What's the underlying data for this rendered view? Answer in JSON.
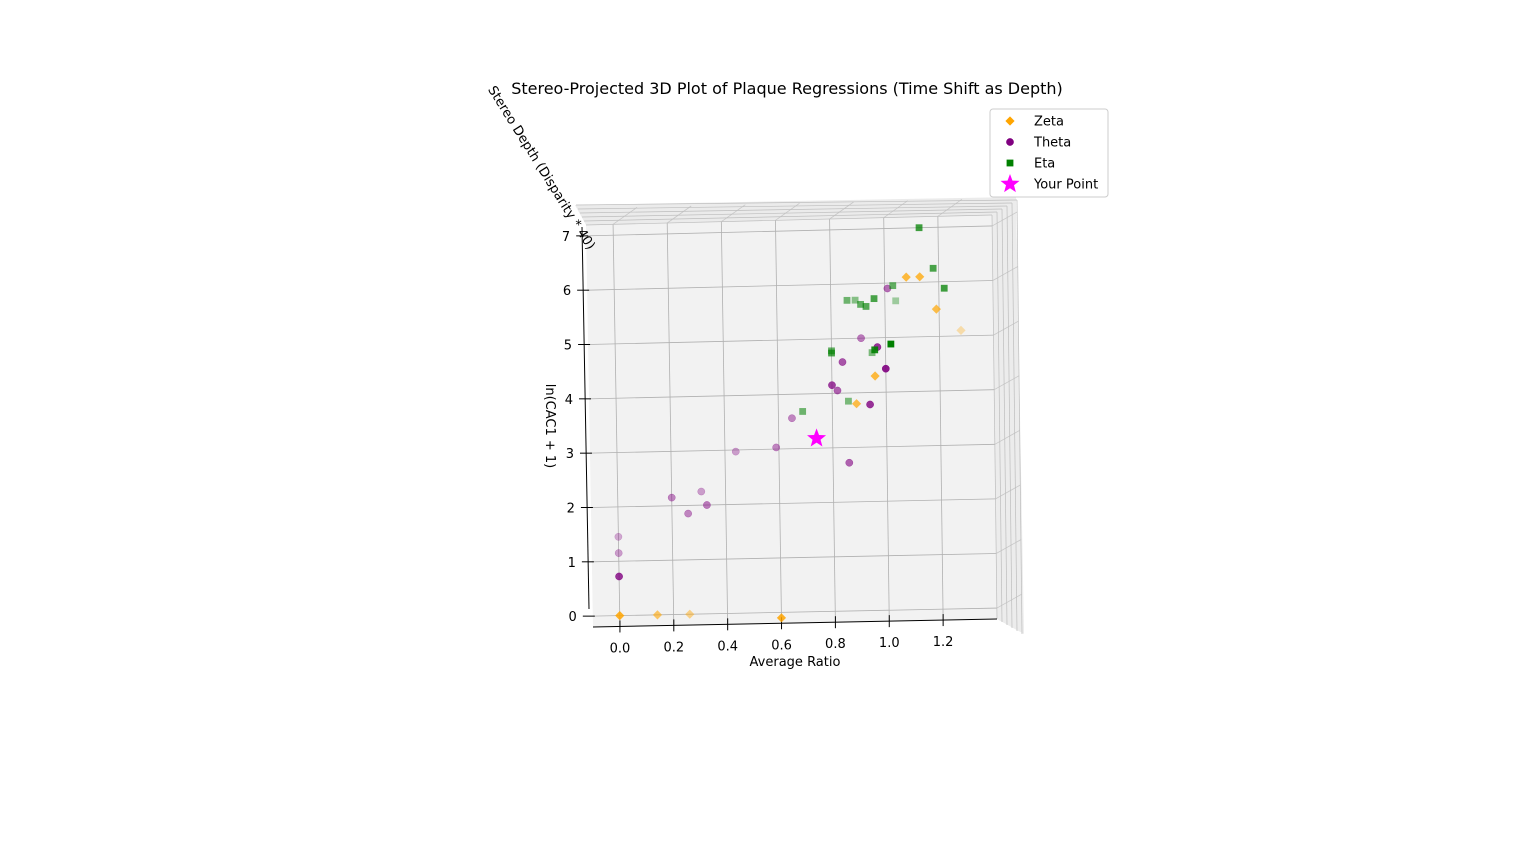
{
  "chart_data": {
    "type": "scatter",
    "title": "Stereo-Projected 3D Plot of Plaque Regressions (Time Shift as Depth)",
    "xlabel": "Average Ratio",
    "ylabel": "ln(CAC1 + 1)",
    "zlabel": "Stereo Depth (Disparity * 40)",
    "xlim": [
      -0.1,
      1.4
    ],
    "ylim": [
      -0.2,
      7.2
    ],
    "x_ticks": [
      "0.0",
      "0.2",
      "0.4",
      "0.6",
      "0.8",
      "1.0",
      "1.2"
    ],
    "y_ticks": [
      "0",
      "1",
      "2",
      "3",
      "4",
      "5",
      "6",
      "7"
    ],
    "grid": true,
    "legend_position": "top-right",
    "colors": {
      "Zeta": "#ffa500",
      "Theta": "#800080",
      "Eta": "#008000",
      "Your Point": "#ff00ff"
    },
    "series": [
      {
        "name": "Zeta",
        "marker": "diamond",
        "points": [
          {
            "x": 0.0,
            "y": 0.0,
            "alpha": 0.85
          },
          {
            "x": 0.14,
            "y": 0.0,
            "alpha": 0.6
          },
          {
            "x": 0.26,
            "y": 0.0,
            "alpha": 0.45
          },
          {
            "x": 0.6,
            "y": -0.1,
            "alpha": 0.85
          },
          {
            "x": 0.89,
            "y": 3.8,
            "alpha": 0.7
          },
          {
            "x": 0.96,
            "y": 4.3,
            "alpha": 0.75
          },
          {
            "x": 1.08,
            "y": 6.1,
            "alpha": 0.75
          },
          {
            "x": 1.13,
            "y": 6.1,
            "alpha": 0.75
          },
          {
            "x": 1.19,
            "y": 5.5,
            "alpha": 0.7
          },
          {
            "x": 1.28,
            "y": 5.1,
            "alpha": 0.3
          }
        ]
      },
      {
        "name": "Theta",
        "marker": "circle",
        "points": [
          {
            "x": 0.0,
            "y": 1.45,
            "alpha": 0.3
          },
          {
            "x": 0.0,
            "y": 1.15,
            "alpha": 0.35
          },
          {
            "x": 0.0,
            "y": 0.72,
            "alpha": 0.8
          },
          {
            "x": 0.2,
            "y": 2.15,
            "alpha": 0.45
          },
          {
            "x": 0.26,
            "y": 1.85,
            "alpha": 0.45
          },
          {
            "x": 0.31,
            "y": 2.25,
            "alpha": 0.35
          },
          {
            "x": 0.33,
            "y": 2.0,
            "alpha": 0.5
          },
          {
            "x": 0.44,
            "y": 2.97,
            "alpha": 0.35
          },
          {
            "x": 0.59,
            "y": 3.03,
            "alpha": 0.45
          },
          {
            "x": 0.65,
            "y": 3.56,
            "alpha": 0.45
          },
          {
            "x": 0.74,
            "y": 3.18,
            "alpha": 0.6
          },
          {
            "x": 0.8,
            "y": 4.15,
            "alpha": 0.75
          },
          {
            "x": 0.82,
            "y": 4.05,
            "alpha": 0.6
          },
          {
            "x": 0.84,
            "y": 4.57,
            "alpha": 0.65
          },
          {
            "x": 0.86,
            "y": 2.72,
            "alpha": 0.6
          },
          {
            "x": 0.91,
            "y": 5.0,
            "alpha": 0.5
          },
          {
            "x": 0.94,
            "y": 3.78,
            "alpha": 0.8
          },
          {
            "x": 0.97,
            "y": 4.83,
            "alpha": 0.8
          },
          {
            "x": 1.0,
            "y": 4.43,
            "alpha": 0.9
          },
          {
            "x": 1.01,
            "y": 5.9,
            "alpha": 0.55
          }
        ]
      },
      {
        "name": "Eta",
        "marker": "square",
        "points": [
          {
            "x": 0.69,
            "y": 3.68,
            "alpha": 0.55
          },
          {
            "x": 0.8,
            "y": 4.78,
            "alpha": 0.6
          },
          {
            "x": 0.8,
            "y": 4.74,
            "alpha": 0.7
          },
          {
            "x": 0.86,
            "y": 3.85,
            "alpha": 0.5
          },
          {
            "x": 0.86,
            "y": 5.7,
            "alpha": 0.55
          },
          {
            "x": 0.89,
            "y": 5.7,
            "alpha": 0.45
          },
          {
            "x": 0.91,
            "y": 5.62,
            "alpha": 0.6
          },
          {
            "x": 0.93,
            "y": 5.58,
            "alpha": 0.65
          },
          {
            "x": 0.95,
            "y": 4.73,
            "alpha": 0.5
          },
          {
            "x": 0.96,
            "y": 4.78,
            "alpha": 0.9
          },
          {
            "x": 0.96,
            "y": 5.72,
            "alpha": 0.7
          },
          {
            "x": 1.02,
            "y": 4.88,
            "alpha": 1.0
          },
          {
            "x": 1.03,
            "y": 5.95,
            "alpha": 0.6
          },
          {
            "x": 1.04,
            "y": 5.67,
            "alpha": 0.35
          },
          {
            "x": 1.13,
            "y": 7.0,
            "alpha": 0.75
          },
          {
            "x": 1.18,
            "y": 6.25,
            "alpha": 0.7
          },
          {
            "x": 1.22,
            "y": 5.88,
            "alpha": 0.75
          }
        ]
      },
      {
        "name": "Your Point",
        "marker": "star",
        "points": [
          {
            "x": 0.74,
            "y": 3.18,
            "alpha": 1.0
          }
        ]
      }
    ]
  }
}
